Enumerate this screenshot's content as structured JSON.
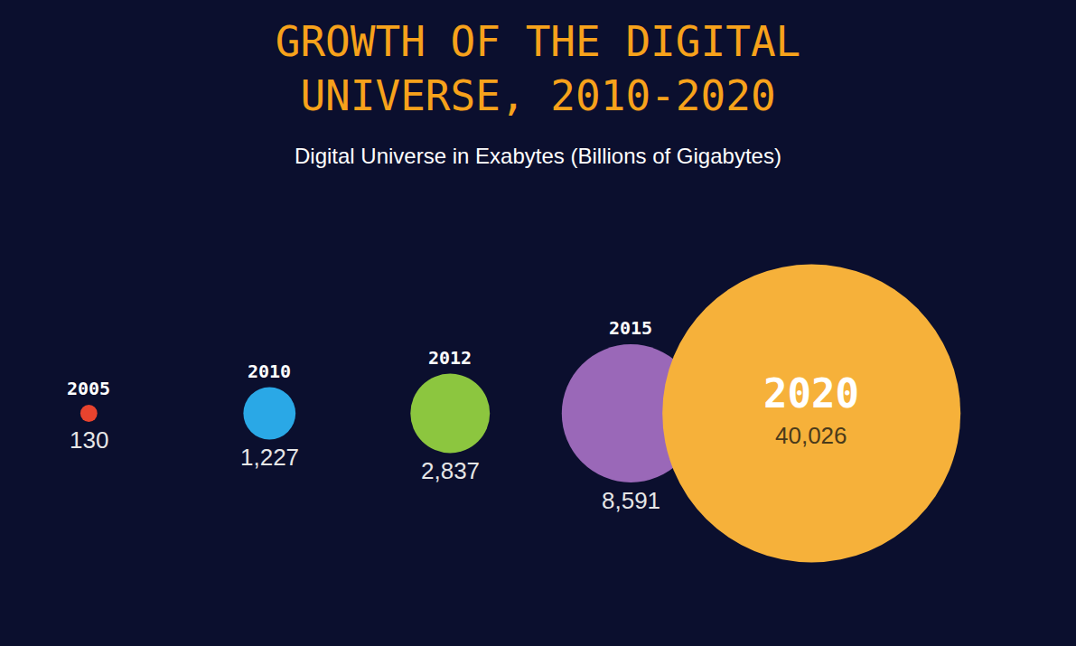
{
  "chart_data": {
    "type": "bubble",
    "title": "GROWTH OF THE DIGITAL UNIVERSE, 2010-2020",
    "subtitle": "Digital Universe in Exabytes (Billions of Gigabytes)",
    "categories": [
      "2005",
      "2010",
      "2012",
      "2015",
      "2020"
    ],
    "values": [
      130,
      1227,
      2837,
      8591,
      40026
    ],
    "value_labels": [
      "130",
      "1,227",
      "2,837",
      "8,591",
      "40,026"
    ],
    "colors": [
      "#e8432e",
      "#2aa8e6",
      "#8cc63f",
      "#9a68b8",
      "#f6b13a"
    ],
    "data_labels": true,
    "tick_labels": false,
    "grid": false
  }
}
